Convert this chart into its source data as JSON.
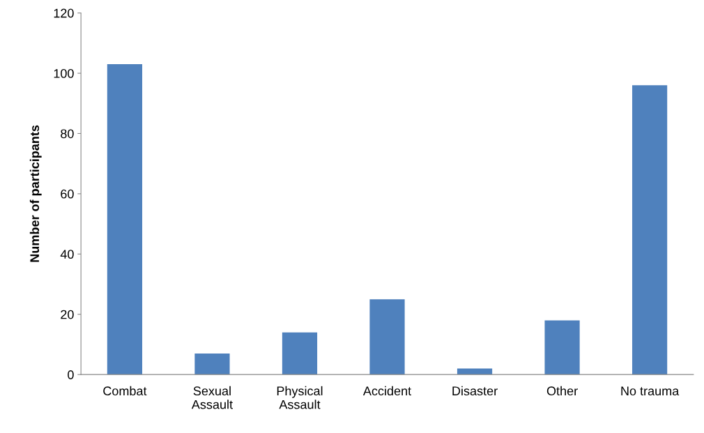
{
  "chart_data": {
    "type": "bar",
    "ylabel": "Number of participants",
    "categories": [
      "Combat",
      "Sexual\nAssault",
      "Physical\nAssault",
      "Accident",
      "Disaster",
      "Other",
      "No trauma"
    ],
    "values": [
      103,
      7,
      14,
      25,
      2,
      18,
      96
    ],
    "color": "#4f81bd",
    "ylim": [
      0,
      120
    ],
    "yticks": [
      0,
      20,
      40,
      60,
      80,
      100,
      120
    ],
    "grid": false
  }
}
